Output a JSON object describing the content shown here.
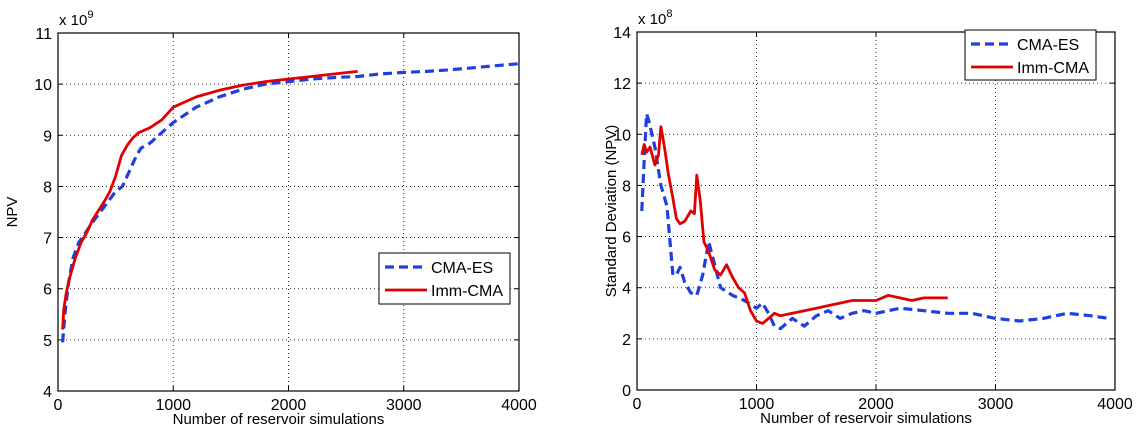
{
  "chart_data": [
    {
      "type": "line",
      "title": "",
      "xlabel": "Number of reservoir simulations",
      "ylabel": "NPV",
      "xlim": [
        0,
        4000
      ],
      "ylim": [
        4,
        11
      ],
      "xticks": [
        0,
        1000,
        2000,
        3000,
        4000
      ],
      "yticks": [
        4,
        5,
        6,
        7,
        8,
        9,
        10,
        11
      ],
      "yexponent_base": "x 10",
      "yexponent_power": "9",
      "grid": true,
      "legend_position": "bottom-right",
      "series": [
        {
          "name": "CMA-ES",
          "color": "#1f3fe0",
          "dash": "dashed",
          "x": [
            40,
            60,
            90,
            130,
            180,
            240,
            300,
            400,
            500,
            560,
            600,
            680,
            720,
            800,
            900,
            1000,
            1100,
            1200,
            1400,
            1600,
            1800,
            2000,
            2200,
            2400,
            2600,
            2800,
            3000,
            3200,
            3400,
            3600,
            3800,
            4000
          ],
          "y": [
            4.95,
            5.5,
            6.1,
            6.6,
            6.9,
            7.1,
            7.3,
            7.6,
            7.9,
            8.0,
            8.2,
            8.6,
            8.75,
            8.85,
            9.05,
            9.25,
            9.4,
            9.55,
            9.75,
            9.9,
            10.0,
            10.05,
            10.1,
            10.13,
            10.15,
            10.2,
            10.23,
            10.25,
            10.28,
            10.32,
            10.36,
            10.4
          ]
        },
        {
          "name": "Imm-CMA",
          "color": "#e00000",
          "dash": "solid",
          "x": [
            40,
            50,
            70,
            100,
            150,
            200,
            250,
            300,
            400,
            450,
            500,
            550,
            600,
            650,
            700,
            800,
            900,
            1000,
            1100,
            1200,
            1400,
            1600,
            1800,
            2000,
            2200,
            2400,
            2600
          ],
          "y": [
            5.2,
            5.6,
            5.9,
            6.2,
            6.6,
            6.9,
            7.1,
            7.35,
            7.7,
            7.9,
            8.2,
            8.6,
            8.8,
            8.95,
            9.05,
            9.15,
            9.3,
            9.55,
            9.65,
            9.75,
            9.88,
            9.98,
            10.05,
            10.1,
            10.15,
            10.2,
            10.25
          ]
        }
      ]
    },
    {
      "type": "line",
      "title": "",
      "xlabel": "Number of reservoir simulations",
      "ylabel": "Standard Deviation (NPV)",
      "xlim": [
        0,
        4000
      ],
      "ylim": [
        0,
        14
      ],
      "xticks": [
        0,
        1000,
        2000,
        3000,
        4000
      ],
      "yticks": [
        0,
        2,
        4,
        6,
        8,
        10,
        12,
        14
      ],
      "yexponent_base": "x 10",
      "yexponent_power": "8",
      "grid": true,
      "legend_position": "top-right",
      "series": [
        {
          "name": "CMA-ES",
          "color": "#1f3fe0",
          "dash": "dashed",
          "x": [
            40,
            60,
            80,
            100,
            150,
            200,
            250,
            300,
            330,
            360,
            400,
            450,
            500,
            550,
            600,
            700,
            800,
            900,
            1000,
            1050,
            1100,
            1150,
            1200,
            1300,
            1400,
            1500,
            1600,
            1700,
            1800,
            1900,
            2000,
            2200,
            2400,
            2600,
            2800,
            3000,
            3200,
            3400,
            3600,
            3800,
            3950
          ],
          "y": [
            7.0,
            9.0,
            10.8,
            10.5,
            9.5,
            8.0,
            7.2,
            4.5,
            4.5,
            4.8,
            4.2,
            3.8,
            3.7,
            4.5,
            5.8,
            4.0,
            3.7,
            3.5,
            3.2,
            3.4,
            3.0,
            2.5,
            2.4,
            2.8,
            2.5,
            2.9,
            3.1,
            2.8,
            3.0,
            3.1,
            3.0,
            3.2,
            3.1,
            3.0,
            3.0,
            2.8,
            2.7,
            2.8,
            3.0,
            2.9,
            2.8
          ]
        },
        {
          "name": "Imm-CMA",
          "color": "#e00000",
          "dash": "solid",
          "x": [
            40,
            60,
            80,
            110,
            150,
            180,
            200,
            230,
            260,
            300,
            330,
            360,
            400,
            450,
            480,
            500,
            530,
            560,
            600,
            650,
            700,
            750,
            800,
            850,
            900,
            950,
            1000,
            1050,
            1100,
            1150,
            1200,
            1300,
            1400,
            1500,
            1600,
            1700,
            1800,
            1900,
            2000,
            2100,
            2200,
            2300,
            2400,
            2500,
            2600
          ],
          "y": [
            9.2,
            9.6,
            9.3,
            9.5,
            8.8,
            9.2,
            10.3,
            9.5,
            8.5,
            7.5,
            6.7,
            6.5,
            6.6,
            7.0,
            6.9,
            8.4,
            7.4,
            5.8,
            5.4,
            4.7,
            4.5,
            4.9,
            4.4,
            4.0,
            3.8,
            3.1,
            2.7,
            2.6,
            2.8,
            3.0,
            2.9,
            3.0,
            3.1,
            3.2,
            3.3,
            3.4,
            3.5,
            3.5,
            3.5,
            3.7,
            3.6,
            3.5,
            3.6,
            3.6,
            3.6
          ]
        }
      ]
    }
  ]
}
